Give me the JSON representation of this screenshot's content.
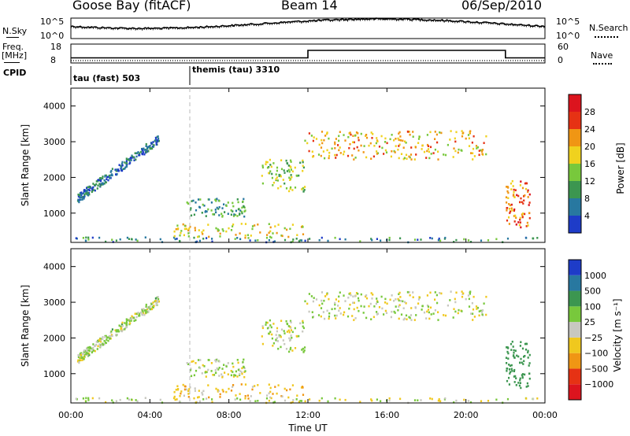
{
  "header": {
    "station": "Goose Bay (fitACF)",
    "beam": "Beam 14",
    "date": "06/Sep/2010"
  },
  "noise_panel": {
    "left_label": "N.Sky",
    "left_ticks": [
      "10^5",
      "10^0"
    ],
    "right_label": "N.Search",
    "right_ticks": [
      "10^5",
      "10^0"
    ]
  },
  "freq_panel": {
    "left_label_1": "Freq.",
    "left_label_2": "[MHz]",
    "left_ticks": [
      "18",
      "8"
    ],
    "right_label": "Nave",
    "right_ticks": [
      "60",
      "0"
    ]
  },
  "cpid": {
    "label": "CPID",
    "segments": [
      {
        "name": "tau (fast) 503",
        "start_hour": 0
      },
      {
        "name": "themis (tau) 3310",
        "start_hour": 6
      }
    ]
  },
  "x_axis": {
    "title": "Time UT",
    "ticks": [
      "00:00",
      "04:00",
      "08:00",
      "12:00",
      "16:00",
      "20:00",
      "00:00"
    ],
    "range_hours": [
      0,
      24
    ]
  },
  "power_panel": {
    "ylabel": "Slant Range [km]",
    "yticks": [
      "1000",
      "2000",
      "3000",
      "4000"
    ],
    "colorbar_title": "Power [dB]",
    "colorbar_ticks": [
      "4",
      "8",
      "12",
      "16",
      "20",
      "24",
      "28"
    ],
    "colors": [
      "#1e3cc8",
      "#2878a0",
      "#3c9650",
      "#78c83c",
      "#f0d21e",
      "#f09614",
      "#e63214",
      "#dc141e"
    ]
  },
  "velocity_panel": {
    "ylabel": "Slant Range [km]",
    "yticks": [
      "1000",
      "2000",
      "3000",
      "4000"
    ],
    "colorbar_title": "Velocity [m s⁻¹]",
    "colorbar_ticks": [
      "1000",
      "500",
      "100",
      "25",
      "−25",
      "−100",
      "−500",
      "−1000"
    ],
    "colors": [
      "#1e3cc8",
      "#2878a0",
      "#3c9650",
      "#78c83c",
      "#c8c8c0",
      "#f0c81e",
      "#f09614",
      "#e63214",
      "#dc141e"
    ]
  },
  "chart_data": {
    "type": "heatmap",
    "title": "Goose Bay (fitACF)  Beam 14  06/Sep/2010",
    "xlabel": "Time UT",
    "ylabel": "Slant Range [km]",
    "x_range_hours": [
      0,
      24
    ],
    "y_range_km": [
      180,
      4500
    ],
    "cpid_change_hour": 6,
    "frequency_mhz": [
      {
        "from_hour": 0,
        "to_hour": 12,
        "value": 10.5
      },
      {
        "from_hour": 12,
        "to_hour": 22,
        "value": 14.8
      },
      {
        "from_hour": 22,
        "to_hour": 24,
        "value": 10.5
      }
    ],
    "regions": [
      {
        "name": "ground-band",
        "t0": 0.1,
        "t1": 23.8,
        "r0": 180,
        "r1": 320,
        "power": 8,
        "velocity": 0
      },
      {
        "name": "early-linear-band",
        "t0": 0.3,
        "t1": 4.5,
        "r0": 1350,
        "r1": 3200,
        "power": 6,
        "velocity": 25
      },
      {
        "name": "lower-patch",
        "t0": 5.2,
        "t1": 11.8,
        "r0": 300,
        "r1": 700,
        "power": 18,
        "velocity": -80
      },
      {
        "name": "mid-band",
        "t0": 5.8,
        "t1": 8.8,
        "r0": 900,
        "r1": 1400,
        "power": 10,
        "velocity": 10
      },
      {
        "name": "patch-10h",
        "t0": 9.6,
        "t1": 11.8,
        "r0": 1600,
        "r1": 2500,
        "power": 14,
        "velocity": 5
      },
      {
        "name": "band-13-21h",
        "t0": 11.8,
        "t1": 21.0,
        "r0": 2500,
        "r1": 3300,
        "power": 20,
        "velocity": 0
      },
      {
        "name": "late-patch",
        "t0": 22.0,
        "t1": 23.2,
        "r0": 600,
        "r1": 1900,
        "power": 24,
        "velocity": 300
      }
    ]
  }
}
